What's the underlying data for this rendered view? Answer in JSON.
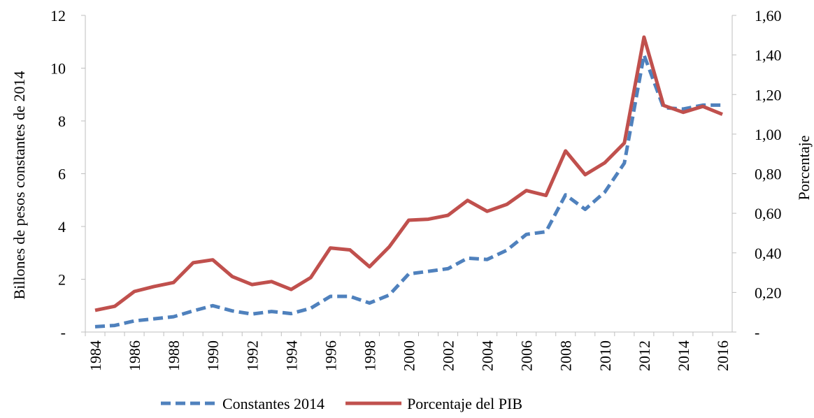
{
  "chart_data": {
    "type": "line",
    "y_label": "Billones de pesos constantes de 2014",
    "y2_label": "Porcentaje",
    "categories": [
      "1984",
      null,
      "1986",
      null,
      "1988",
      null,
      "1990",
      null,
      "1992",
      null,
      "1994",
      null,
      "1996",
      null,
      "1998",
      null,
      "2000",
      null,
      "2002",
      null,
      "2004",
      null,
      "2006",
      null,
      "2008",
      null,
      "2010",
      null,
      "2012",
      null,
      "2014",
      null,
      "2016"
    ],
    "ylim": [
      0,
      12
    ],
    "yticks": [
      {
        "value": 0,
        "label": "-"
      },
      2,
      4,
      6,
      8,
      10,
      12
    ],
    "y2lim": [
      0,
      1.6
    ],
    "y2ticks": [
      {
        "value": 0,
        "label": "-"
      },
      {
        "value": 0.2,
        "label": "0,20"
      },
      {
        "value": 0.4,
        "label": "0,40"
      },
      {
        "value": 0.6,
        "label": "0,60"
      },
      {
        "value": 0.8,
        "label": "0,80"
      },
      {
        "value": 1.0,
        "label": "1,00"
      },
      {
        "value": 1.2,
        "label": "1,20"
      },
      {
        "value": 1.4,
        "label": "1,40"
      },
      {
        "value": 1.6,
        "label": "1,60"
      }
    ],
    "legend": "bottom",
    "series": [
      {
        "name": "Constantes 2014",
        "color": "#4f81bd",
        "dash": true,
        "values": [
          0.2,
          0.25,
          0.42,
          0.5,
          0.58,
          0.8,
          1.0,
          0.8,
          0.68,
          0.78,
          0.7,
          0.9,
          1.35,
          1.35,
          1.1,
          1.4,
          2.2,
          2.3,
          2.4,
          2.8,
          2.75,
          3.1,
          3.7,
          3.8,
          5.2,
          4.65,
          5.3,
          6.4,
          10.5,
          8.5,
          8.45,
          8.6,
          8.6
        ]
      },
      {
        "name": "Porcentaje del PIB",
        "color": "#c0504d",
        "axis": "y2",
        "values": [
          0.11,
          0.13,
          0.205,
          0.23,
          0.25,
          0.35,
          0.365,
          0.28,
          0.24,
          0.255,
          0.215,
          0.275,
          0.425,
          0.415,
          0.33,
          0.43,
          0.565,
          0.57,
          0.59,
          0.665,
          0.61,
          0.645,
          0.715,
          0.69,
          0.915,
          0.795,
          0.855,
          0.955,
          1.49,
          1.145,
          1.11,
          1.14,
          1.1
        ]
      }
    ]
  }
}
